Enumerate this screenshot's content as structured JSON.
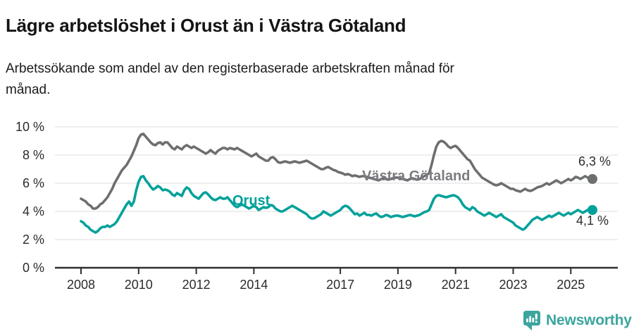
{
  "header": {
    "title": "Lägre arbetslöshet i Orust än i Västra Götaland",
    "subtitle_line1": "Arbetssökande som andel av den registerbaserade arbetskraften månad för",
    "subtitle_line2": "månad."
  },
  "chart_data": {
    "type": "line",
    "title": "Lägre arbetslöshet i Orust än i Västra Götaland",
    "subtitle": "Arbetssökande som andel av den registerbaserade arbetskraften månad för månad.",
    "xlabel": "",
    "ylabel": "",
    "ylim": [
      0,
      10
    ],
    "grid": true,
    "x_start_year": 2008,
    "points_per_year": 12,
    "y_ticks": {
      "values": [
        0,
        2,
        4,
        6,
        8,
        10
      ],
      "labels": [
        "0 %",
        "2 %",
        "4 %",
        "6 %",
        "8 %",
        "10 %"
      ]
    },
    "x_ticks": {
      "values": [
        2008,
        2010,
        2012,
        2014,
        2017,
        2019,
        2021,
        2023,
        2025
      ],
      "labels": [
        "2008",
        "2010",
        "2012",
        "2014",
        "2017",
        "2019",
        "2021",
        "2023",
        "2025"
      ]
    },
    "gridline_color": "#e3e3e3",
    "axis_color": "#2f2f2f",
    "tick_text_color": "#2b2b2b",
    "series": [
      {
        "name": "Västra Götaland",
        "color": "#6c6e70",
        "label_color": "#7b7c80",
        "end_label": "6,3 %",
        "end_value": 6.3,
        "values": [
          4.9,
          4.8,
          4.7,
          4.5,
          4.4,
          4.2,
          4.2,
          4.3,
          4.5,
          4.6,
          4.8,
          5.0,
          5.3,
          5.6,
          6.0,
          6.3,
          6.6,
          6.9,
          7.1,
          7.3,
          7.6,
          7.9,
          8.3,
          8.7,
          9.2,
          9.45,
          9.5,
          9.3,
          9.1,
          8.9,
          8.75,
          8.7,
          8.85,
          8.9,
          8.75,
          8.9,
          8.9,
          8.7,
          8.5,
          8.4,
          8.6,
          8.5,
          8.4,
          8.6,
          8.7,
          8.6,
          8.5,
          8.6,
          8.5,
          8.4,
          8.3,
          8.2,
          8.1,
          8.2,
          8.35,
          8.2,
          8.1,
          8.3,
          8.4,
          8.5,
          8.5,
          8.4,
          8.5,
          8.45,
          8.4,
          8.5,
          8.4,
          8.3,
          8.2,
          8.1,
          8.0,
          7.9,
          8.0,
          8.1,
          7.9,
          7.8,
          7.7,
          7.6,
          7.6,
          7.8,
          7.85,
          7.7,
          7.5,
          7.45,
          7.5,
          7.55,
          7.5,
          7.45,
          7.5,
          7.55,
          7.5,
          7.45,
          7.5,
          7.55,
          7.6,
          7.5,
          7.4,
          7.3,
          7.2,
          7.1,
          7.0,
          7.0,
          7.1,
          7.15,
          7.05,
          6.95,
          6.9,
          6.8,
          6.75,
          6.7,
          6.6,
          6.65,
          6.6,
          6.5,
          6.55,
          6.5,
          6.45,
          6.5,
          6.5,
          6.45,
          6.4,
          6.35,
          6.3,
          6.25,
          6.2,
          6.3,
          6.35,
          6.3,
          6.25,
          6.3,
          6.35,
          6.4,
          6.4,
          6.35,
          6.3,
          6.25,
          6.2,
          6.3,
          6.35,
          6.3,
          6.25,
          6.3,
          6.4,
          6.5,
          6.6,
          6.7,
          7.3,
          8.0,
          8.6,
          8.9,
          9.0,
          8.95,
          8.8,
          8.6,
          8.5,
          8.6,
          8.65,
          8.5,
          8.3,
          8.1,
          7.9,
          7.7,
          7.6,
          7.3,
          7.0,
          6.8,
          6.6,
          6.4,
          6.3,
          6.2,
          6.1,
          6.0,
          5.9,
          5.85,
          5.9,
          6.0,
          5.9,
          5.8,
          5.7,
          5.6,
          5.6,
          5.5,
          5.45,
          5.4,
          5.5,
          5.6,
          5.5,
          5.45,
          5.5,
          5.6,
          5.7,
          5.75,
          5.8,
          5.9,
          6.0,
          5.9,
          6.0,
          6.1,
          6.2,
          6.1,
          6.0,
          6.1,
          6.2,
          6.3,
          6.2,
          6.3,
          6.45,
          6.4,
          6.3,
          6.4,
          6.5,
          6.4,
          6.3,
          6.3
        ]
      },
      {
        "name": "Orust",
        "color": "#00a19a",
        "label_color": "#00a19a",
        "end_label": "4,1 %",
        "end_value": 4.1,
        "values": [
          3.3,
          3.2,
          3.0,
          2.9,
          2.7,
          2.6,
          2.5,
          2.6,
          2.8,
          2.9,
          2.9,
          3.0,
          2.9,
          3.0,
          3.1,
          3.3,
          3.6,
          3.9,
          4.2,
          4.5,
          4.7,
          4.4,
          4.7,
          5.5,
          6.1,
          6.45,
          6.5,
          6.2,
          6.0,
          5.75,
          5.55,
          5.65,
          5.8,
          5.7,
          5.5,
          5.55,
          5.5,
          5.4,
          5.2,
          5.1,
          5.3,
          5.2,
          5.1,
          5.5,
          5.7,
          5.6,
          5.3,
          5.1,
          5.0,
          4.9,
          5.1,
          5.3,
          5.35,
          5.2,
          5.0,
          4.85,
          4.8,
          4.9,
          5.0,
          4.9,
          4.9,
          5.0,
          4.8,
          4.6,
          4.4,
          4.3,
          4.4,
          4.5,
          4.4,
          4.3,
          4.2,
          4.3,
          4.4,
          4.3,
          4.1,
          4.2,
          4.3,
          4.25,
          4.3,
          4.45,
          4.4,
          4.2,
          4.1,
          4.0,
          4.0,
          4.1,
          4.2,
          4.3,
          4.4,
          4.3,
          4.2,
          4.1,
          4.0,
          3.9,
          3.8,
          3.6,
          3.5,
          3.5,
          3.6,
          3.7,
          3.8,
          4.0,
          3.9,
          3.8,
          3.7,
          3.8,
          3.9,
          4.0,
          4.1,
          4.3,
          4.4,
          4.35,
          4.2,
          4.0,
          3.8,
          3.85,
          3.7,
          3.8,
          3.9,
          3.75,
          3.75,
          3.7,
          3.8,
          3.85,
          3.7,
          3.6,
          3.65,
          3.75,
          3.7,
          3.6,
          3.65,
          3.7,
          3.7,
          3.65,
          3.6,
          3.65,
          3.7,
          3.75,
          3.7,
          3.65,
          3.7,
          3.75,
          3.85,
          3.95,
          4.0,
          4.1,
          4.5,
          4.9,
          5.1,
          5.15,
          5.1,
          5.05,
          5.0,
          5.05,
          5.1,
          5.15,
          5.1,
          5.0,
          4.8,
          4.5,
          4.3,
          4.2,
          4.1,
          4.3,
          4.2,
          4.0,
          3.9,
          3.8,
          3.7,
          3.8,
          3.9,
          3.8,
          3.7,
          3.6,
          3.7,
          3.8,
          3.6,
          3.5,
          3.4,
          3.3,
          3.2,
          3.0,
          2.9,
          2.8,
          2.7,
          2.8,
          3.0,
          3.2,
          3.4,
          3.5,
          3.6,
          3.5,
          3.4,
          3.5,
          3.6,
          3.7,
          3.6,
          3.7,
          3.8,
          3.9,
          3.8,
          3.7,
          3.8,
          3.9,
          3.8,
          3.9,
          4.0,
          4.1,
          4.0,
          3.9,
          4.0,
          4.1,
          4.0,
          4.1
        ]
      }
    ]
  },
  "footer": {
    "brand": "Newsworthy",
    "brand_color": "#3ba59e"
  }
}
